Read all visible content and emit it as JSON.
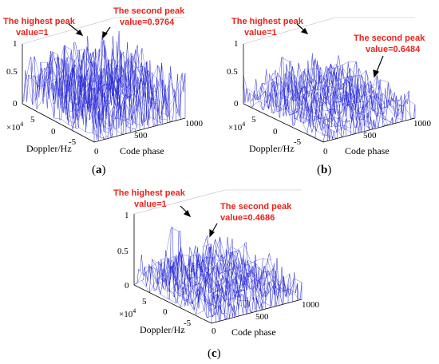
{
  "figure": {
    "panels": [
      {
        "id": "a",
        "label_open": "(",
        "label_letter": "a",
        "label_close": ")",
        "highest_peak_text_1": "The highest peak",
        "highest_peak_text_2": "value=1",
        "second_peak_text_1": "The second peak",
        "second_peak_text_2": "value=0.9764"
      },
      {
        "id": "b",
        "label_open": "(",
        "label_letter": "b",
        "label_close": ")",
        "highest_peak_text_1": "The highest peak",
        "highest_peak_text_2": "value=1",
        "second_peak_text_1": "The second peak",
        "second_peak_text_2": "value=0.6484"
      },
      {
        "id": "c",
        "label_open": "(",
        "label_letter": "c",
        "label_close": ")",
        "highest_peak_text_1": "The highest peak",
        "highest_peak_text_2": "value=1",
        "second_peak_text_1": "The second peak",
        "second_peak_text_2": "value=0.4686"
      }
    ],
    "line_color": "#2b2bd8",
    "annotation_color": "#e8231c"
  },
  "chart_data": [
    {
      "type": "surface3d",
      "panel": "a",
      "xlabel": "Code phase",
      "ylabel": "Doppler/Hz",
      "y_multiplier": "×10",
      "y_multiplier_exp": "4",
      "x_ticks": [
        "0",
        "500",
        "1000"
      ],
      "y_ticks": [
        "5",
        "0",
        "-5"
      ],
      "z_ticks": [
        "0",
        "0.5",
        "1"
      ],
      "x_range": [
        0,
        1000
      ],
      "y_range": [
        -8,
        8
      ],
      "z_range": [
        0,
        1
      ],
      "highest_peak": 1,
      "second_peak": 0.9764,
      "noise_level": [
        0.3,
        0.9
      ]
    },
    {
      "type": "surface3d",
      "panel": "b",
      "xlabel": "Code phase",
      "ylabel": "Doppler/Hz",
      "y_multiplier": "×10",
      "y_multiplier_exp": "4",
      "x_ticks": [
        "0",
        "500",
        "1000"
      ],
      "y_ticks": [
        "5",
        "0",
        "-5"
      ],
      "z_ticks": [
        "0",
        "0.5",
        "1"
      ],
      "x_range": [
        0,
        1000
      ],
      "y_range": [
        -8,
        8
      ],
      "z_range": [
        0,
        1
      ],
      "highest_peak": 1,
      "second_peak": 0.6484,
      "noise_level": [
        0.1,
        0.55
      ]
    },
    {
      "type": "surface3d",
      "panel": "c",
      "xlabel": "Code phase",
      "ylabel": "Doppler/Hz",
      "y_multiplier": "×10",
      "y_multiplier_exp": "4",
      "x_ticks": [
        "0",
        "500",
        "1000"
      ],
      "y_ticks": [
        "5",
        "0",
        "-5"
      ],
      "z_ticks": [
        "0",
        "0.5",
        "1"
      ],
      "x_range": [
        0,
        1000
      ],
      "y_range": [
        -8,
        8
      ],
      "z_range": [
        0,
        1
      ],
      "highest_peak": 1,
      "second_peak": 0.4686,
      "noise_level": [
        0.1,
        0.45
      ]
    }
  ]
}
